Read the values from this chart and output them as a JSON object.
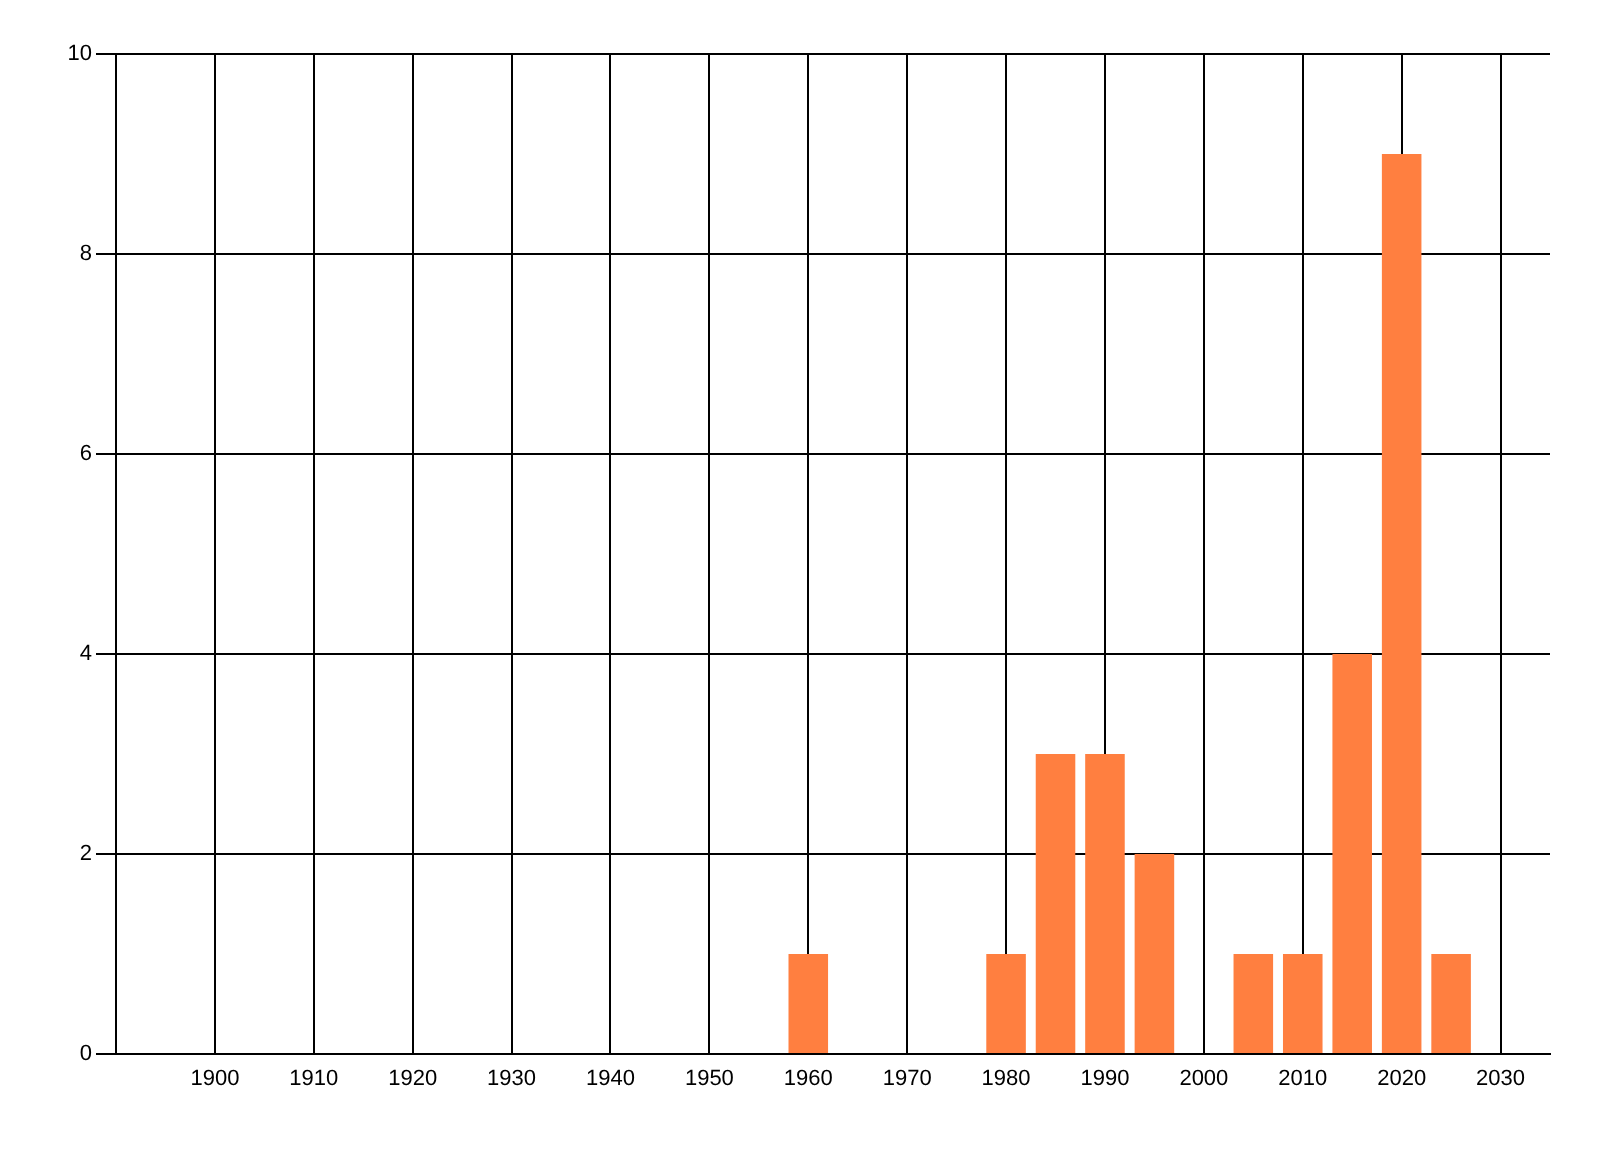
{
  "chart_data": {
    "type": "bar",
    "x": [
      1960,
      1980,
      1985,
      1990,
      1995,
      2005,
      2010,
      2015,
      2020,
      2025
    ],
    "values": [
      1,
      1,
      3,
      3,
      2,
      1,
      1,
      4,
      9,
      1
    ],
    "color": "#ff7f40",
    "xlim": [
      1890,
      2035
    ],
    "xticks": [
      1900,
      1910,
      1920,
      1930,
      1940,
      1950,
      1960,
      1970,
      1980,
      1990,
      2000,
      2010,
      2020,
      2030
    ],
    "ylim": [
      0,
      10
    ],
    "yticks": [
      0,
      2,
      4,
      6,
      8,
      10
    ],
    "grid": true
  }
}
